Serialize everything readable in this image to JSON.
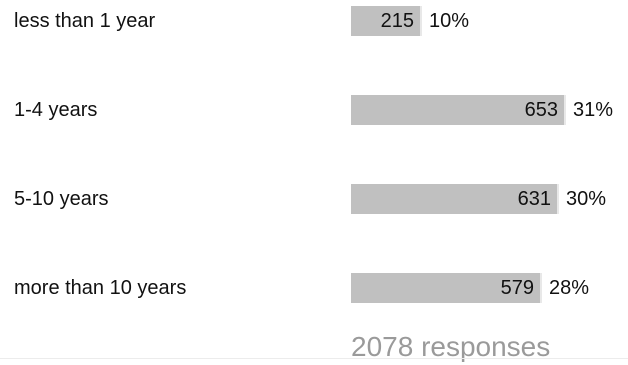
{
  "chart_data": {
    "type": "bar",
    "orientation": "horizontal",
    "categories": [
      "less than 1 year",
      "1-4 years",
      "5-10 years",
      "more than 10 years"
    ],
    "values": [
      215,
      653,
      631,
      579
    ],
    "percent_labels": [
      "10%",
      "31%",
      "30%",
      "28%"
    ],
    "value_labels": [
      "215",
      "653",
      "631",
      "579"
    ],
    "total_label": "2078 responses",
    "title": "",
    "xlabel": "",
    "ylabel": "",
    "xlim": [
      0,
      653
    ],
    "grid": false,
    "legend": "none"
  },
  "colors": {
    "bar": "#c0c0c0",
    "text": "#111111",
    "total_text": "#9a9a9a"
  }
}
